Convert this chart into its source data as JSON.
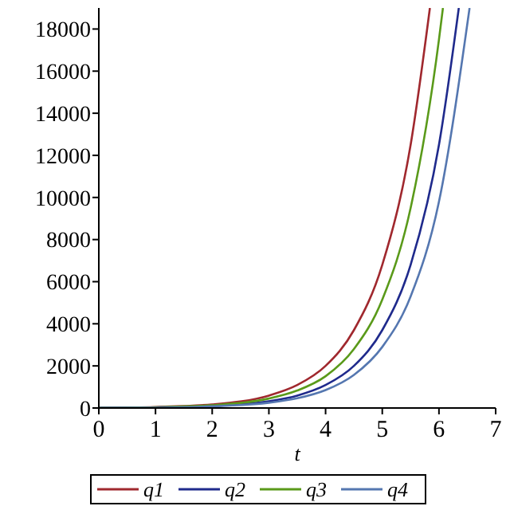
{
  "chart_data": {
    "type": "line",
    "xlabel": "t",
    "xlim": [
      0,
      7
    ],
    "xticks": [
      0,
      1,
      2,
      3,
      4,
      5,
      6,
      7
    ],
    "ylim": [
      0,
      19000
    ],
    "yticks": [
      0,
      2000,
      4000,
      6000,
      8000,
      10000,
      12000,
      14000,
      16000,
      18000
    ],
    "grid": false,
    "legend": "bottom",
    "line_style": "solid",
    "series": [
      {
        "name": "q1",
        "color": "#a0282e",
        "x": [
          0,
          1,
          2,
          3,
          3.5,
          4,
          4.5,
          5,
          5.5,
          5.84
        ],
        "values": [
          10,
          50,
          170,
          590,
          1090,
          2000,
          3700,
          6800,
          12500,
          19000
        ]
      },
      {
        "name": "q2",
        "color": "#1f2a8c",
        "x": [
          0,
          1,
          2,
          3,
          3.5,
          4,
          4.5,
          5,
          5.5,
          6,
          6.35
        ],
        "values": [
          10,
          30,
          100,
          320,
          590,
          1090,
          2000,
          3700,
          6800,
          12500,
          19000
        ]
      },
      {
        "name": "q3",
        "color": "#5a9a1a",
        "x": [
          0,
          1,
          2,
          3,
          3.5,
          4,
          4.5,
          5,
          5.5,
          6,
          6.07
        ],
        "values": [
          10,
          40,
          130,
          450,
          830,
          1510,
          2800,
          5150,
          9500,
          17500,
          19000
        ]
      },
      {
        "name": "q4",
        "color": "#5577b0",
        "x": [
          0,
          1,
          2,
          3,
          3.5,
          4,
          4.5,
          5,
          5.5,
          6,
          6.54
        ],
        "values": [
          10,
          20,
          80,
          250,
          460,
          850,
          1570,
          2900,
          5300,
          9800,
          19000
        ]
      }
    ]
  }
}
